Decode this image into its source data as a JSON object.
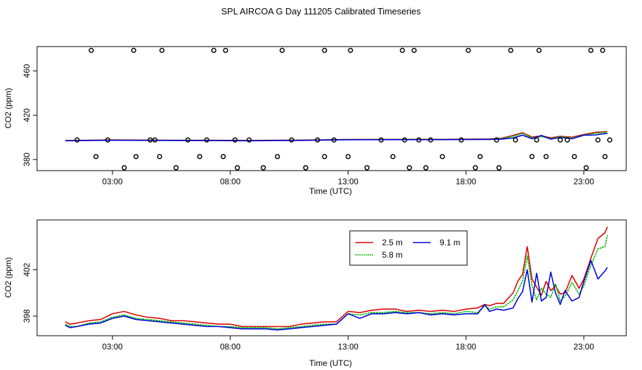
{
  "title": "SPL AIRCOA G  Day 111205  Calibrated Timeseries",
  "colors": {
    "s25": "#dd0000",
    "s58": "#00bb00",
    "s91": "#0000dd"
  },
  "chart_data": [
    {
      "type": "line",
      "id": "top",
      "xlabel": "Time (UTC)",
      "ylabel": "CO2 (ppm)",
      "x_ticks": [
        3,
        8,
        13,
        18,
        23
      ],
      "x_tick_labels": [
        "03:00",
        "08:00",
        "13:00",
        "18:00",
        "23:00"
      ],
      "xlim": [
        -0.2,
        24.8
      ],
      "y_ticks": [
        380,
        420,
        460
      ],
      "y_tick_labels": [
        "380",
        "420",
        "460"
      ],
      "ylim": [
        370,
        482
      ],
      "series": [
        {
          "name": "2.5 m",
          "color_key": "s25",
          "x": [
            1,
            3,
            5,
            7,
            9,
            11,
            13,
            15,
            17,
            19,
            19.5,
            20,
            20.4,
            20.8,
            21.2,
            21.6,
            22,
            22.5,
            23,
            23.5,
            24
          ],
          "values": [
            397.2,
            397.7,
            397.5,
            397.4,
            397.3,
            397.6,
            398.1,
            398.2,
            398.3,
            398.6,
            399.2,
            401.8,
            404.2,
            400.3,
            401.4,
            399.6,
            401.0,
            400.2,
            402.6,
            404.6,
            405.3
          ]
        },
        {
          "name": "5.8 m",
          "color_key": "s58",
          "x": [
            1,
            3,
            5,
            7,
            9,
            11,
            13,
            15,
            17,
            19,
            19.5,
            20,
            20.4,
            20.8,
            21.2,
            21.6,
            22,
            22.5,
            23,
            23.5,
            24
          ],
          "values": [
            397.0,
            397.5,
            397.3,
            397.2,
            397.1,
            397.4,
            398.0,
            398.1,
            398.1,
            398.3,
            398.9,
            401.0,
            403.6,
            399.6,
            400.6,
            399.0,
            400.6,
            399.6,
            402.2,
            403.6,
            404.9
          ]
        },
        {
          "name": "9.1 m",
          "color_key": "s91",
          "x": [
            1,
            3,
            5,
            7,
            9,
            11,
            13,
            15,
            17,
            19,
            19.5,
            20,
            20.4,
            20.8,
            21.2,
            21.6,
            22,
            22.5,
            23,
            23.5,
            24
          ],
          "values": [
            397.0,
            397.4,
            397.2,
            397.1,
            397.0,
            397.3,
            397.9,
            398.0,
            398.0,
            398.2,
            398.4,
            399.5,
            402.0,
            398.8,
            401.8,
            398.4,
            400.0,
            398.8,
            402.0,
            402.2,
            403.8
          ]
        }
      ],
      "points": {
        "label": "calibration markers",
        "x": [
          1.5,
          2.3,
          2.8,
          3.5,
          4.0,
          4.6,
          4.8,
          5.0,
          5.7,
          6.2,
          6.7,
          7.0,
          7.7,
          8.2,
          8.3,
          8.8,
          9.4,
          10.0,
          10.6,
          11.2,
          11.7,
          12.0,
          12.4,
          13.0,
          13.8,
          14.4,
          14.9,
          15.4,
          15.6,
          16.0,
          16.3,
          16.5,
          17.0,
          17.8,
          18.4,
          18.6,
          19.3,
          19.4,
          20.1,
          20.8,
          21.0,
          21.4,
          22.0,
          22.3,
          22.6,
          23.1,
          23.6,
          23.9,
          24.1,
          24.4,
          24.6,
          25.0,
          25.2,
          25.4,
          25.6,
          25.8,
          26.0
        ],
        "values": [
          397.7,
          382.7,
          397.7,
          372.6,
          382.7,
          397.7,
          397.7,
          382.7,
          372.6,
          397.7,
          382.7,
          397.7,
          382.7,
          397.7,
          372.6,
          397.7,
          372.6,
          382.7,
          397.7,
          372.6,
          397.7,
          382.7,
          397.7,
          382.7,
          372.6,
          397.7,
          382.7,
          397.7,
          372.6,
          397.7,
          372.6,
          397.7,
          382.7,
          397.7,
          372.6,
          382.7,
          397.7,
          372.6,
          397.7,
          382.7,
          397.7,
          382.7,
          397.7,
          397.7,
          382.7,
          372.6,
          397.7,
          382.7,
          397.7,
          372.6,
          397.7,
          382.7,
          397.7,
          372.6,
          397.7,
          372.6,
          397.7
        ]
      },
      "high_points": {
        "x": [
          2.1,
          3.9,
          5.1,
          7.3,
          7.8,
          10.2,
          12.0,
          13.1,
          15.3,
          15.8,
          18.1,
          19.9,
          21.1,
          23.3,
          23.8
        ],
        "values": [
          478.6,
          478.6,
          478.6,
          478.6,
          478.6,
          478.6,
          478.6,
          478.6,
          478.6,
          478.6,
          478.6,
          478.6,
          478.6,
          478.6,
          478.6
        ]
      }
    },
    {
      "type": "line",
      "id": "bottom",
      "xlabel": "Time (UTC)",
      "ylabel": "CO2 (ppm)",
      "x_ticks": [
        3,
        8,
        13,
        18,
        23
      ],
      "x_tick_labels": [
        "03:00",
        "08:00",
        "13:00",
        "18:00",
        "23:00"
      ],
      "xlim": [
        -0.2,
        24.8
      ],
      "y_ticks": [
        398,
        402
      ],
      "y_tick_labels": [
        "398",
        "402"
      ],
      "ylim": [
        396.3,
        406.3
      ],
      "legend": {
        "position": "top-right",
        "entries": [
          "2.5 m",
          "5.8 m",
          "9.1 m"
        ]
      },
      "series": [
        {
          "name": "2.5 m",
          "color_key": "s25",
          "x": [
            1.0,
            1.2,
            1.5,
            2.0,
            2.5,
            3.0,
            3.5,
            4.0,
            4.5,
            5.0,
            5.5,
            6.0,
            6.5,
            7.0,
            7.5,
            8.0,
            8.5,
            9.0,
            9.5,
            10.0,
            10.5,
            11.0,
            11.5,
            12.0,
            12.5,
            13.0,
            13.5,
            14.0,
            14.5,
            15.0,
            15.5,
            16.0,
            16.5,
            17.0,
            17.5,
            18.0,
            18.5,
            18.8,
            19.0,
            19.3,
            19.6,
            20.0,
            20.2,
            20.4,
            20.6,
            20.8,
            21.0,
            21.2,
            21.4,
            21.6,
            21.8,
            22.0,
            22.2,
            22.5,
            22.8,
            23.0,
            23.3,
            23.6,
            23.9,
            24.0
          ],
          "values": [
            397.5,
            397.3,
            397.4,
            397.6,
            397.7,
            398.2,
            398.4,
            398.1,
            397.9,
            397.8,
            397.6,
            397.6,
            397.5,
            397.4,
            397.3,
            397.3,
            397.1,
            397.1,
            397.1,
            397.1,
            397.1,
            397.3,
            397.4,
            397.5,
            397.5,
            398.4,
            398.3,
            398.5,
            398.6,
            398.6,
            398.4,
            398.5,
            398.4,
            398.5,
            398.4,
            398.6,
            398.7,
            399.0,
            398.9,
            399.1,
            399.1,
            400.0,
            401.0,
            401.6,
            404.0,
            401.2,
            400.5,
            399.8,
            401.0,
            400.2,
            400.6,
            399.9,
            400.0,
            401.5,
            400.4,
            401.2,
            403.0,
            404.7,
            405.2,
            405.7
          ]
        },
        {
          "name": "5.8 m",
          "color_key": "s58",
          "x": [
            1.0,
            1.2,
            1.5,
            2.0,
            2.5,
            3.0,
            3.5,
            4.0,
            4.5,
            5.0,
            5.5,
            6.0,
            6.5,
            7.0,
            7.5,
            8.0,
            8.5,
            9.0,
            9.5,
            10.0,
            10.5,
            11.0,
            11.5,
            12.0,
            12.5,
            13.0,
            13.5,
            14.0,
            14.5,
            15.0,
            15.5,
            16.0,
            16.5,
            17.0,
            17.5,
            18.0,
            18.5,
            18.8,
            19.0,
            19.3,
            19.6,
            20.0,
            20.2,
            20.4,
            20.6,
            20.8,
            21.0,
            21.2,
            21.4,
            21.6,
            21.8,
            22.0,
            22.2,
            22.5,
            22.8,
            23.0,
            23.3,
            23.6,
            23.9,
            24.0
          ],
          "values": [
            397.3,
            397.1,
            397.1,
            397.4,
            397.5,
            397.9,
            398.1,
            397.8,
            397.7,
            397.6,
            397.5,
            397.4,
            397.3,
            397.2,
            397.1,
            397.1,
            397.0,
            397.0,
            397.0,
            396.9,
            397.0,
            397.1,
            397.2,
            397.3,
            397.3,
            398.2,
            398.1,
            398.3,
            398.3,
            398.4,
            398.3,
            398.3,
            398.2,
            398.3,
            398.2,
            398.4,
            398.3,
            398.9,
            398.6,
            398.8,
            398.8,
            399.4,
            400.2,
            401.0,
            403.2,
            400.6,
            399.4,
            400.4,
            399.9,
            399.6,
            400.8,
            399.3,
            399.7,
            400.9,
            399.9,
            400.6,
            402.4,
            403.8,
            404.0,
            405.0
          ]
        },
        {
          "name": "9.1 m",
          "color_key": "s91",
          "x": [
            1.0,
            1.2,
            1.5,
            2.0,
            2.5,
            3.0,
            3.5,
            4.0,
            4.5,
            5.0,
            5.5,
            6.0,
            6.5,
            7.0,
            7.5,
            8.0,
            8.5,
            9.0,
            9.5,
            10.0,
            10.5,
            11.0,
            11.5,
            12.0,
            12.5,
            13.0,
            13.5,
            14.0,
            14.5,
            15.0,
            15.5,
            16.0,
            16.5,
            17.0,
            17.5,
            18.0,
            18.5,
            18.8,
            19.0,
            19.3,
            19.6,
            20.0,
            20.2,
            20.4,
            20.6,
            20.8,
            21.0,
            21.2,
            21.4,
            21.6,
            21.8,
            22.0,
            22.2,
            22.5,
            22.8,
            23.0,
            23.3,
            23.6,
            23.9,
            24.0
          ],
          "values": [
            397.2,
            397.0,
            397.1,
            397.3,
            397.4,
            397.8,
            398.0,
            397.7,
            397.6,
            397.5,
            397.4,
            397.3,
            397.2,
            397.1,
            397.1,
            397.0,
            396.9,
            396.9,
            396.9,
            396.8,
            396.9,
            397.0,
            397.1,
            397.2,
            397.3,
            398.2,
            397.8,
            398.2,
            398.2,
            398.3,
            398.2,
            398.3,
            398.1,
            398.2,
            398.1,
            398.2,
            398.2,
            399.0,
            398.4,
            398.6,
            398.5,
            398.7,
            399.5,
            400.1,
            402.0,
            399.2,
            401.7,
            399.3,
            399.6,
            401.8,
            400.0,
            399.0,
            400.2,
            399.3,
            399.6,
            401.0,
            402.8,
            401.2,
            401.9,
            402.2
          ]
        }
      ]
    }
  ]
}
